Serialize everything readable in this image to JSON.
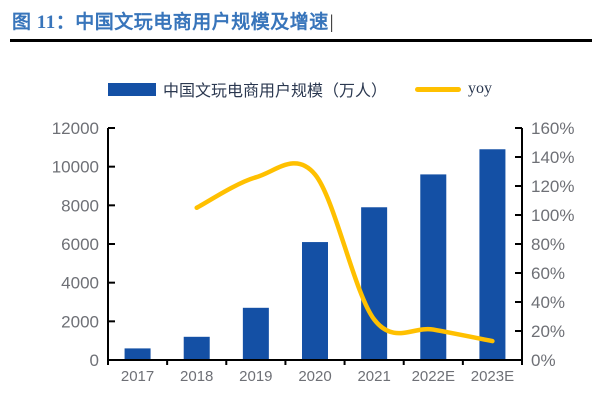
{
  "header": {
    "title": "图 11：中国文玩电商用户规模及增速",
    "cursor": "|",
    "title_color": "#3875bb"
  },
  "legend": {
    "bar_label": "中国文玩电商用户规模（万人）",
    "line_label": "yoy"
  },
  "colors": {
    "bar": "#1450a5",
    "line": "#ffc000",
    "axis": "#000000",
    "tick_label": "#6e7076",
    "legend_text": "#2b3850"
  },
  "chart_data": {
    "type": "bar+line",
    "title": "中国文玩电商用户规模及增速",
    "categories": [
      "2017",
      "2018",
      "2019",
      "2020",
      "2021",
      "2022E",
      "2023E"
    ],
    "series": [
      {
        "name": "中国文玩电商用户规模（万人）",
        "type": "bar",
        "axis": "left",
        "color": "#1450a5",
        "values": [
          600,
          1200,
          2700,
          6100,
          7900,
          9600,
          10900
        ]
      },
      {
        "name": "yoy",
        "type": "line",
        "axis": "right",
        "color": "#ffc000",
        "unit": "%",
        "values": [
          null,
          105,
          126,
          128,
          28,
          21,
          13
        ]
      }
    ],
    "left_axis": {
      "min": 0,
      "max": 12000,
      "step": 2000,
      "tick_labels": [
        "0",
        "2000",
        "4000",
        "6000",
        "8000",
        "10000",
        "12000"
      ]
    },
    "right_axis": {
      "min": 0,
      "max": 160,
      "step": 20,
      "tick_labels": [
        "0%",
        "20%",
        "40%",
        "60%",
        "80%",
        "100%",
        "120%",
        "140%",
        "160%"
      ]
    },
    "legend_position": "top",
    "grid": false,
    "line_smooth": true
  }
}
